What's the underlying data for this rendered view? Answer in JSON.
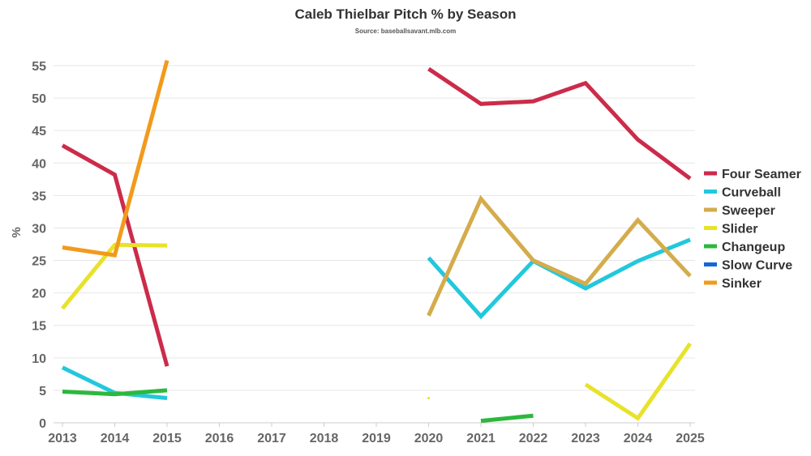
{
  "chart_data": {
    "type": "line",
    "title": "Caleb Thielbar Pitch % by Season",
    "subtitle": "Source: baseballsavant.mlb.com",
    "xlabel": "",
    "ylabel": "%",
    "x": [
      2013,
      2014,
      2015,
      2016,
      2017,
      2018,
      2019,
      2020,
      2021,
      2022,
      2023,
      2024,
      2025
    ],
    "x_tick_labels": [
      "2013",
      "2014",
      "2015",
      "2016",
      "2017",
      "2018",
      "2019",
      "2020",
      "2021",
      "2022",
      "2023",
      "2024",
      "2025"
    ],
    "ylim": [
      0,
      55
    ],
    "y_ticks": [
      0,
      5,
      10,
      15,
      20,
      25,
      30,
      35,
      40,
      45,
      50,
      55
    ],
    "grid": true,
    "legend_position": "right",
    "series": [
      {
        "name": "Four Seamer",
        "color": "#cc2b4a",
        "values": [
          42.7,
          38.2,
          8.7,
          null,
          null,
          null,
          null,
          54.5,
          49.1,
          49.5,
          52.3,
          43.6,
          37.6
        ]
      },
      {
        "name": "Curveball",
        "color": "#22c8dc",
        "values": [
          8.5,
          4.6,
          3.8,
          null,
          null,
          null,
          null,
          25.4,
          16.4,
          24.9,
          20.7,
          24.9,
          28.2
        ]
      },
      {
        "name": "Sweeper",
        "color": "#d4ac4c",
        "values": [
          null,
          null,
          null,
          null,
          null,
          null,
          null,
          16.5,
          34.5,
          25.0,
          21.4,
          31.2,
          22.6
        ]
      },
      {
        "name": "Slider",
        "color": "#e8e22a",
        "values": [
          17.6,
          27.4,
          27.3,
          null,
          null,
          null,
          null,
          3.8,
          null,
          null,
          5.9,
          0.7,
          12.2
        ]
      },
      {
        "name": "Changeup",
        "color": "#2cb83c",
        "values": [
          4.8,
          4.4,
          5.0,
          null,
          null,
          null,
          null,
          null,
          0.3,
          1.1,
          null,
          null,
          null
        ]
      },
      {
        "name": "Slow Curve",
        "color": "#1566d8",
        "values": [
          null,
          null,
          null,
          null,
          null,
          null,
          null,
          null,
          null,
          null,
          null,
          null,
          null
        ]
      },
      {
        "name": "Sinker",
        "color": "#f29a1c",
        "values": [
          27.0,
          25.8,
          55.8,
          null,
          null,
          null,
          null,
          null,
          null,
          null,
          null,
          null,
          null
        ]
      }
    ]
  }
}
